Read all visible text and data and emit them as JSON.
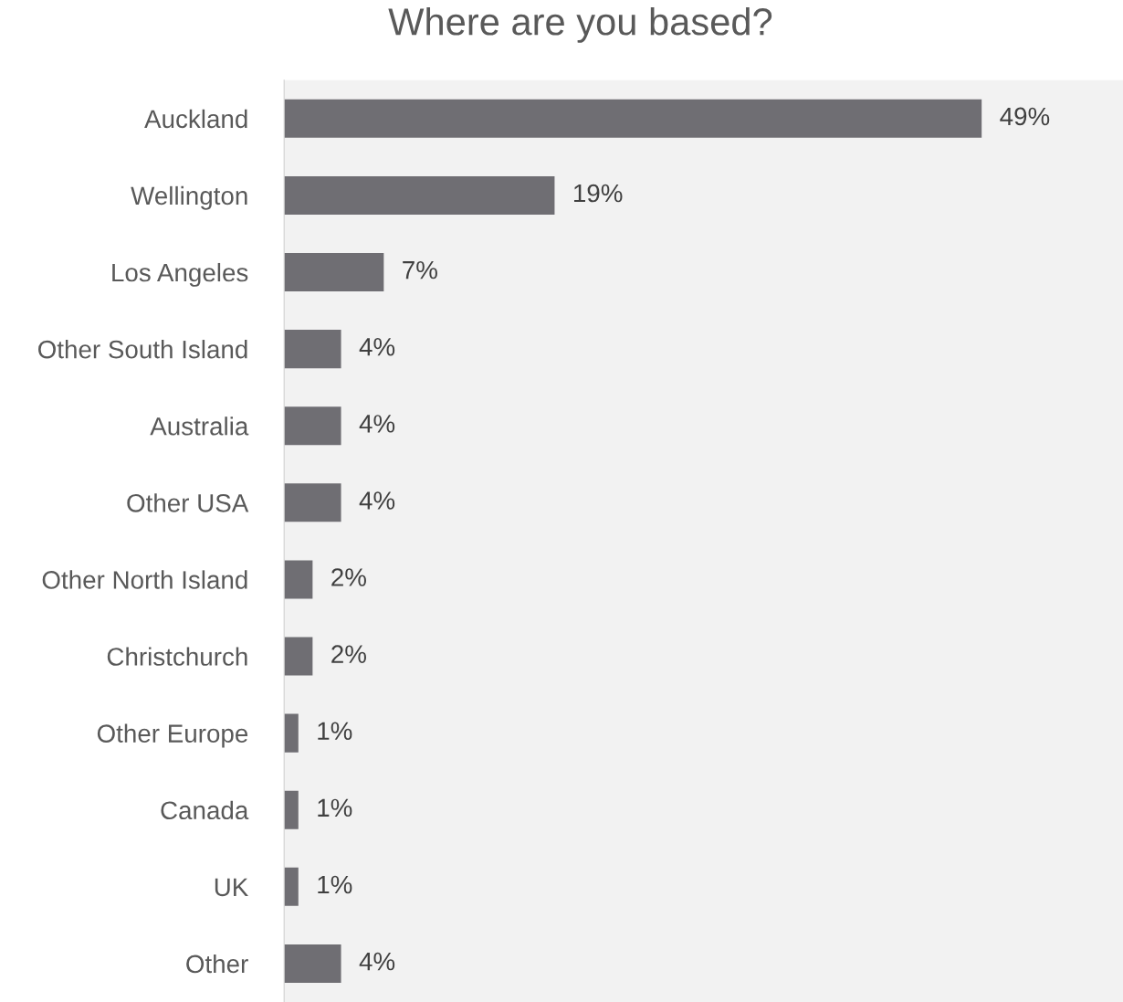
{
  "chart_data": {
    "type": "bar",
    "orientation": "horizontal",
    "title": "Where are you based?",
    "categories": [
      "Auckland",
      "Wellington",
      "Los Angeles",
      "Other South Island",
      "Australia",
      "Other USA",
      "Other North Island",
      "Christchurch",
      "Other Europe",
      "Canada",
      "UK",
      "Other"
    ],
    "values": [
      49,
      19,
      7,
      4,
      4,
      4,
      2,
      2,
      1,
      1,
      1,
      4
    ],
    "value_labels": [
      "49%",
      "19%",
      "7%",
      "4%",
      "4%",
      "4%",
      "2%",
      "2%",
      "1%",
      "1%",
      "1%",
      "4%"
    ],
    "color": "#6f6e73",
    "grid": false,
    "legend": false
  }
}
